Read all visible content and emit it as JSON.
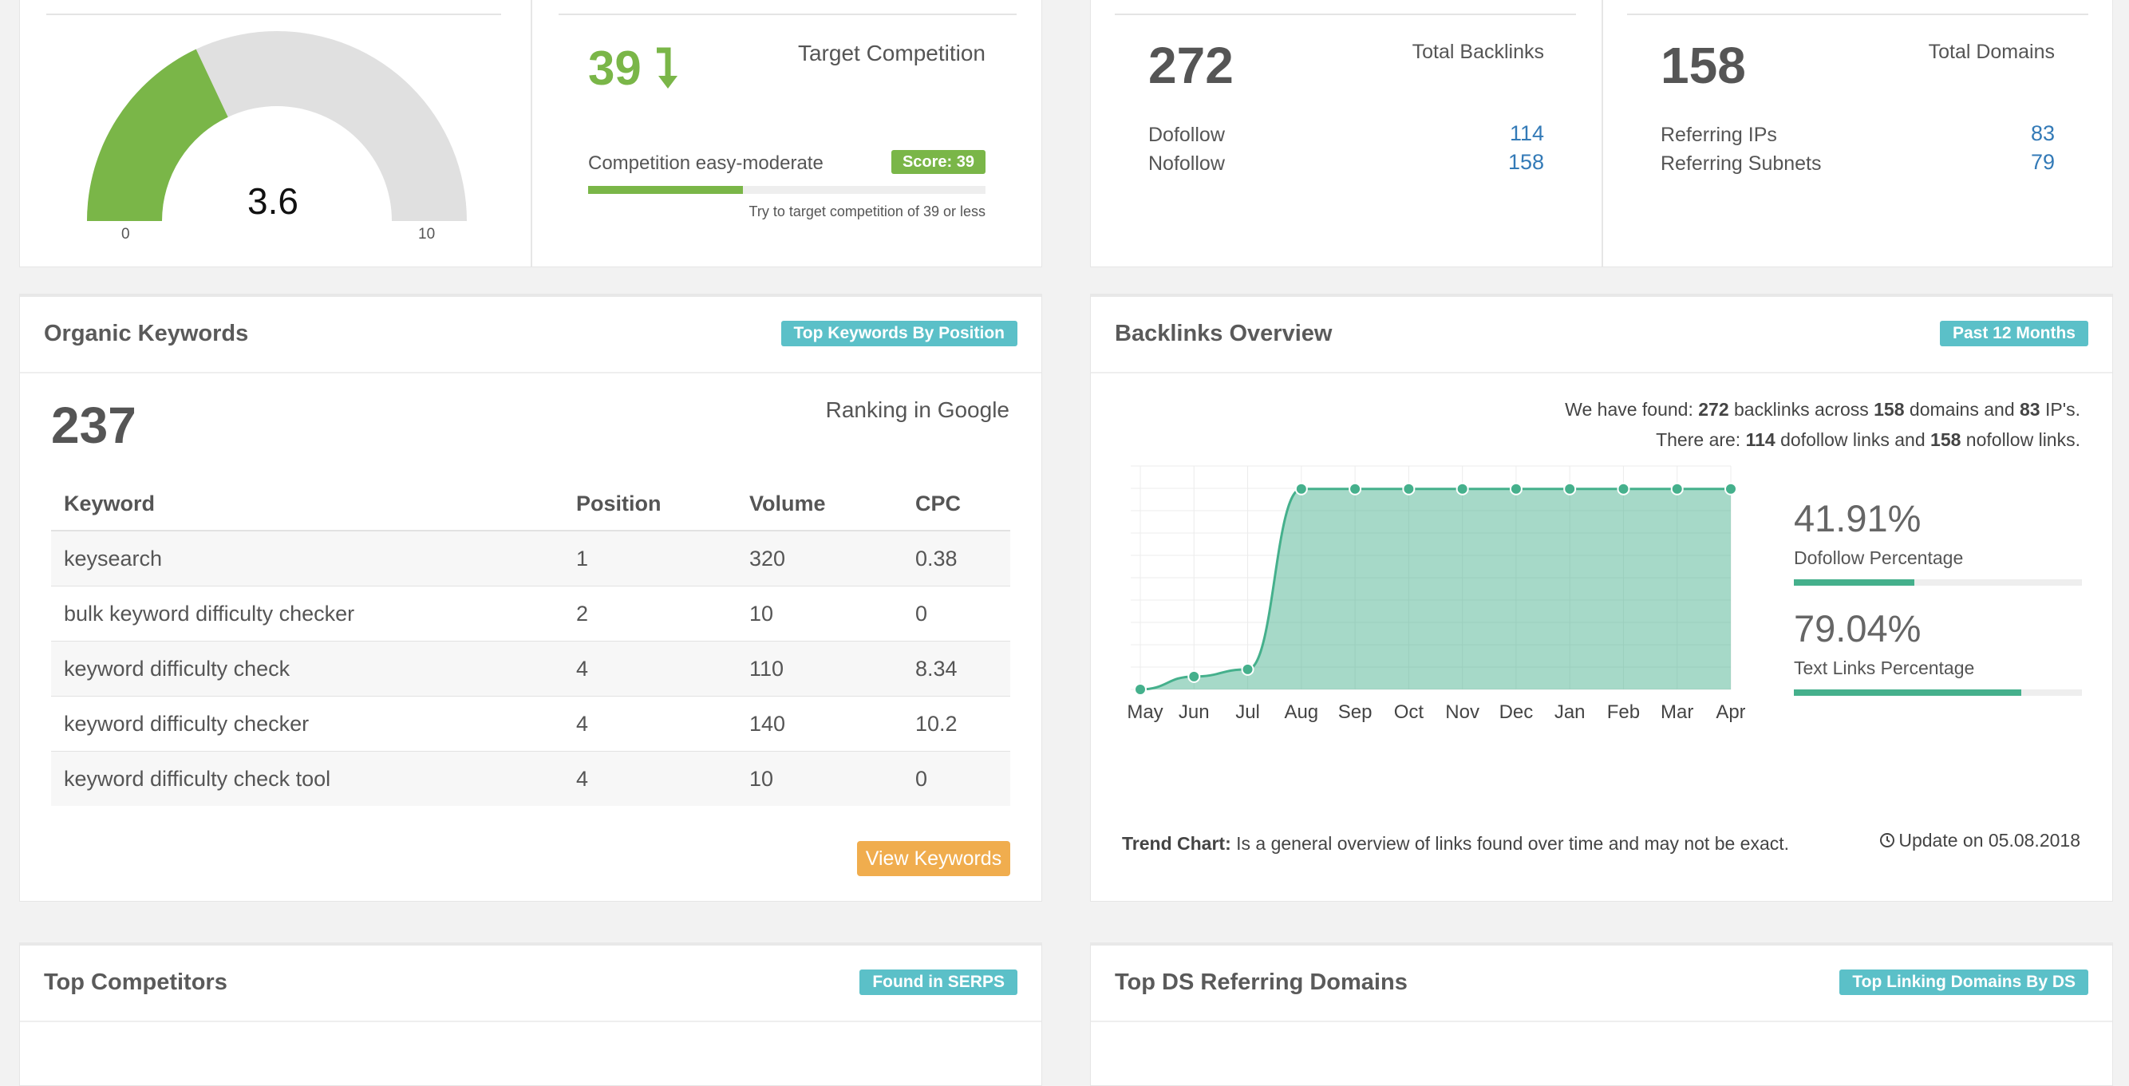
{
  "gauge": {
    "value": "3.6",
    "min_label": "0",
    "max_label": "10",
    "level": 0.36,
    "color": "#7ab648"
  },
  "competition": {
    "value": "39",
    "title": "Target Competition",
    "bar_label": "Competition easy-moderate",
    "score_badge": "Score: 39",
    "hint": "Try to target competition of 39 or less",
    "level": 0.39,
    "color": "#7ab648"
  },
  "backlinks_box": {
    "value": "272",
    "title": "Total Backlinks",
    "rows": [
      {
        "label": "Dofollow",
        "value": "114"
      },
      {
        "label": "Nofollow",
        "value": "158"
      }
    ]
  },
  "domains_box": {
    "value": "158",
    "title": "Total Domains",
    "rows": [
      {
        "label": "Referring IPs",
        "value": "83"
      },
      {
        "label": "Referring Subnets",
        "value": "79"
      }
    ]
  },
  "organic": {
    "title": "Organic Keywords",
    "badge": "Top Keywords By Position",
    "count": "237",
    "count_label": "Ranking in Google",
    "headers": [
      "Keyword",
      "Position",
      "Volume",
      "CPC"
    ],
    "rows": [
      [
        "keysearch",
        "1",
        "320",
        "0.38"
      ],
      [
        "bulk keyword difficulty checker",
        "2",
        "10",
        "0"
      ],
      [
        "keyword difficulty check",
        "4",
        "110",
        "8.34"
      ],
      [
        "keyword difficulty checker",
        "4",
        "140",
        "10.2"
      ],
      [
        "keyword difficulty check tool",
        "4",
        "10",
        "0"
      ]
    ],
    "button": "View Keywords"
  },
  "overview": {
    "title": "Backlinks Overview",
    "badge": "Past 12 Months",
    "line1": {
      "a": "We have found: ",
      "b": "272",
      "c": " backlinks across ",
      "d": "158",
      "e": " domains and ",
      "f": "83",
      "g": " IP's."
    },
    "line2": {
      "a": "There are: ",
      "b": "114",
      "c": " dofollow links and ",
      "d": "158",
      "e": " nofollow links."
    },
    "dofollow_pct": "41.91%",
    "dofollow_label": "Dofollow Percentage",
    "dofollow_level": 0.4191,
    "text_pct": "79.04%",
    "text_label": "Text Links Percentage",
    "text_level": 0.7904,
    "bar_color": "#45b08c",
    "footer_bold": "Trend Chart:",
    "footer_text": " Is a general overview of links found over time and may not be exact.",
    "update_icon": "clock-icon",
    "update": "Update on 05.08.2018"
  },
  "competitors": {
    "title": "Top Competitors",
    "badge": "Found in SERPS"
  },
  "referring": {
    "title": "Top DS Referring Domains",
    "badge": "Top Linking Domains By DS"
  },
  "chart_data": {
    "type": "area",
    "categories": [
      "May",
      "Jun",
      "Jul",
      "Aug",
      "Sep",
      "Oct",
      "Nov",
      "Dec",
      "Jan",
      "Feb",
      "Mar",
      "Apr"
    ],
    "values": [
      0,
      45,
      70,
      700,
      700,
      700,
      700,
      700,
      700,
      700,
      700,
      700
    ],
    "ylim": [
      0,
      780
    ],
    "grid": true,
    "color": "#45b08c"
  }
}
